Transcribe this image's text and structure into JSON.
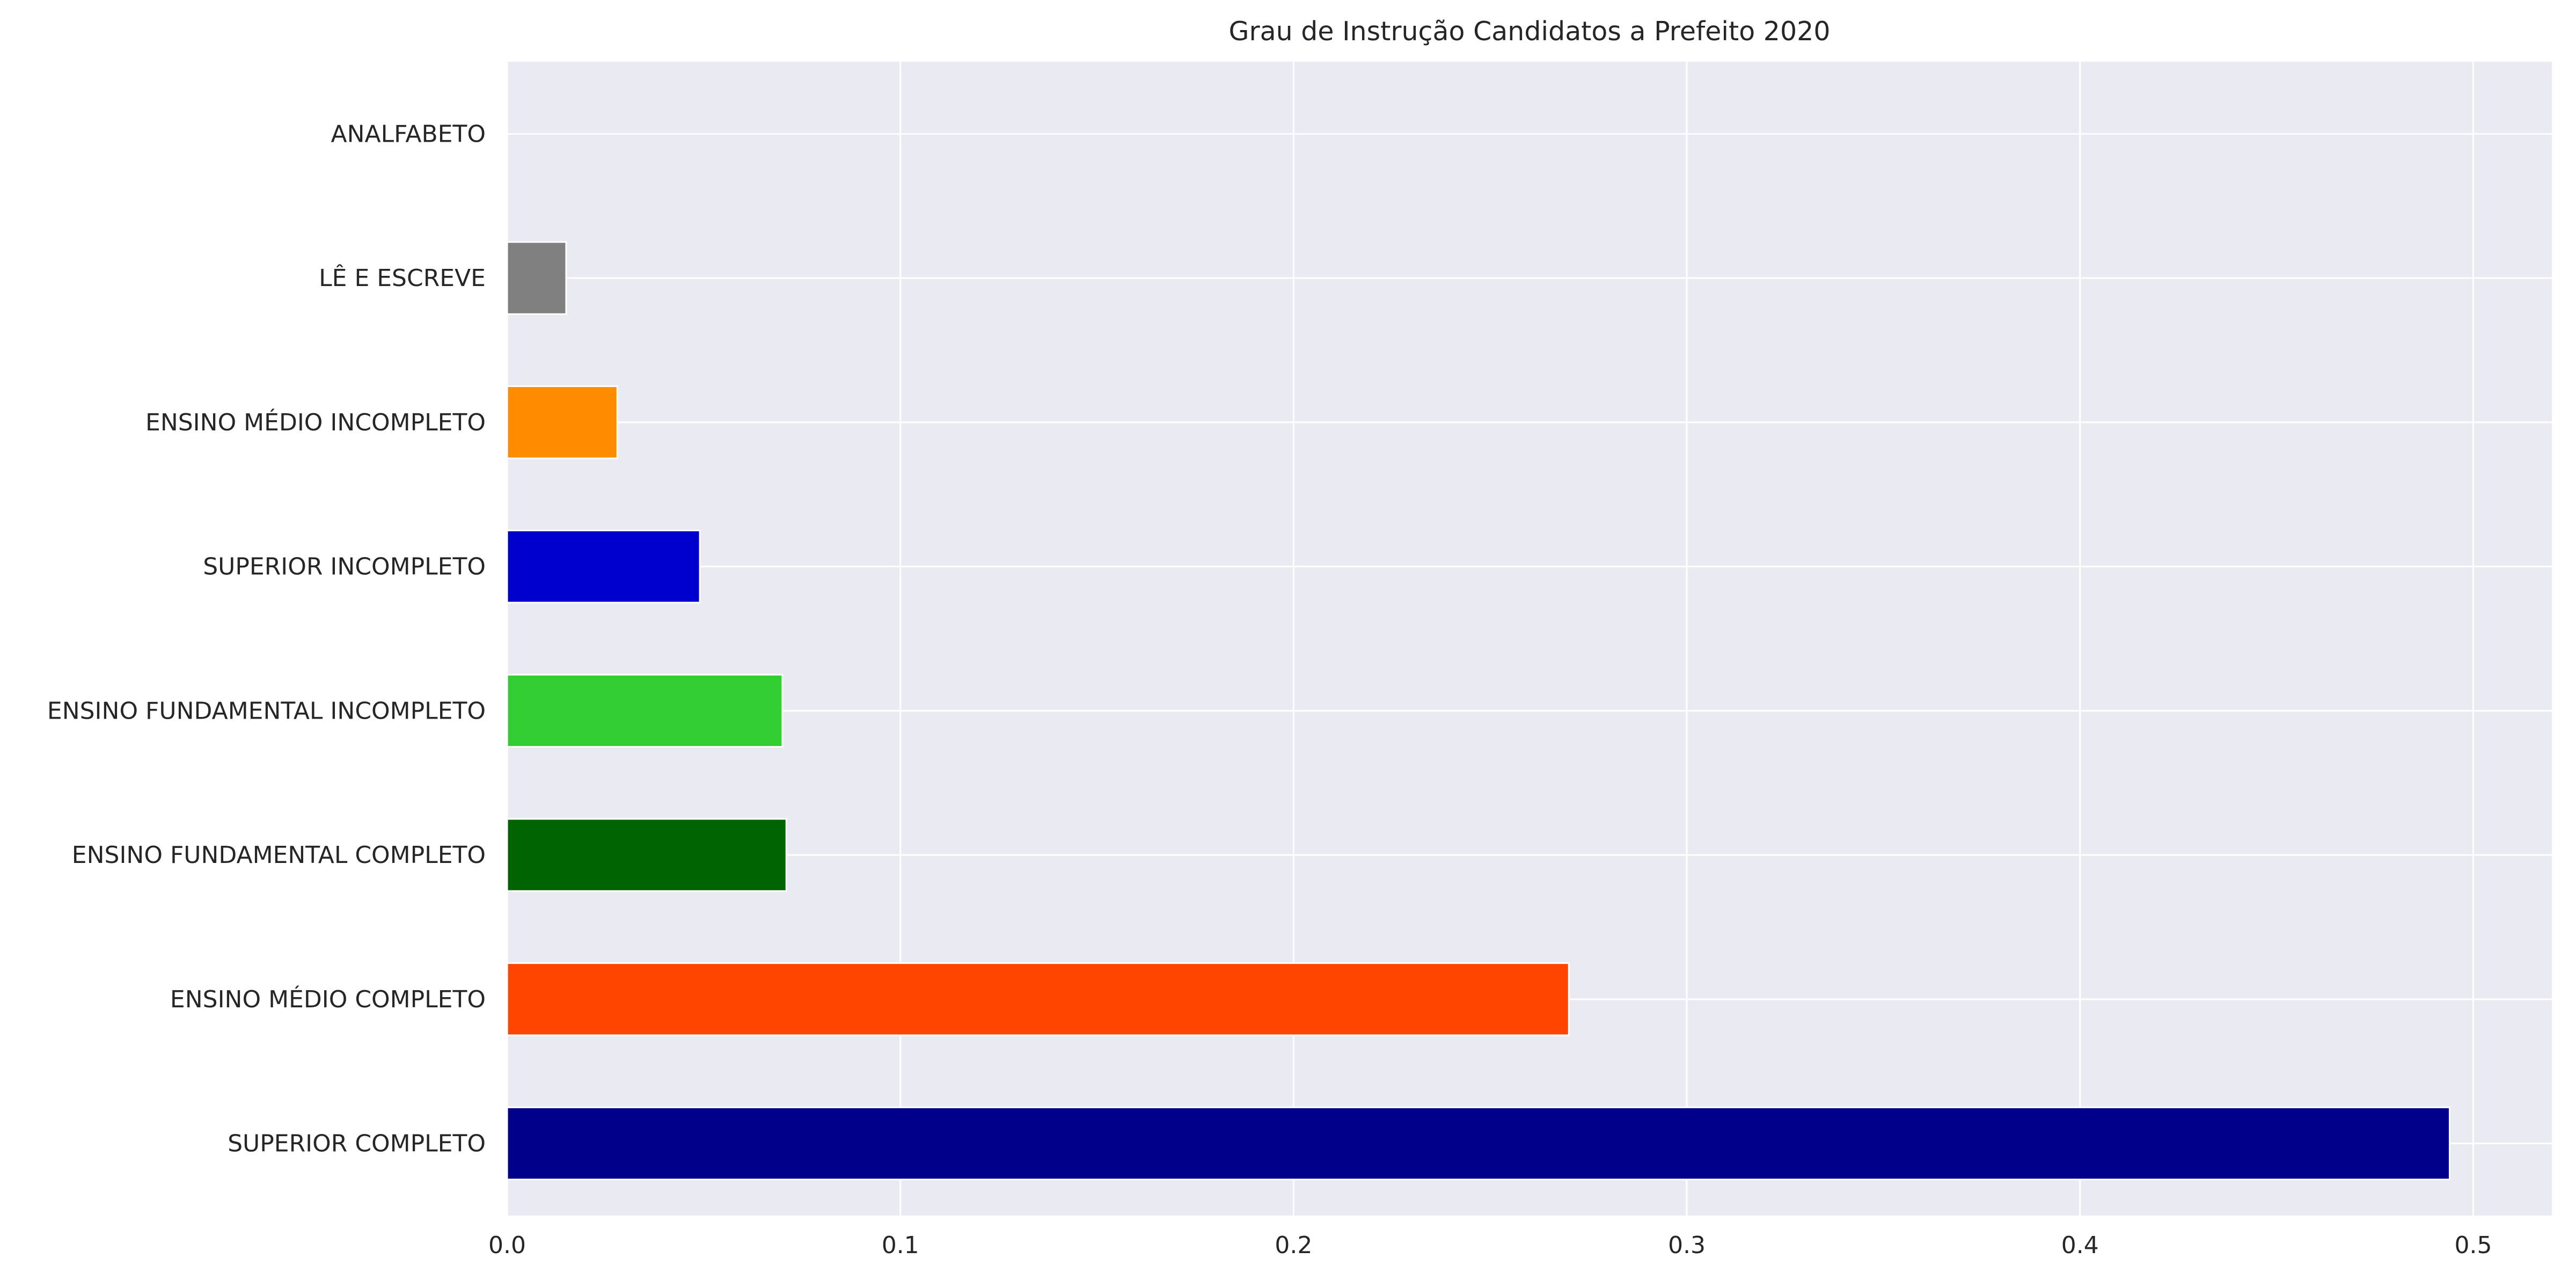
{
  "chart_data": {
    "type": "bar",
    "orientation": "horizontal",
    "title": "Grau de Instrução Candidatos a Prefeito 2020",
    "xlabel": "",
    "ylabel": "",
    "categories": [
      "SUPERIOR COMPLETO",
      "ENSINO MÉDIO COMPLETO",
      "ENSINO FUNDAMENTAL COMPLETO",
      "ENSINO FUNDAMENTAL INCOMPLETO",
      "SUPERIOR INCOMPLETO",
      "ENSINO MÉDIO INCOMPLETO",
      "LÊ E ESCREVE",
      "ANALFABETO"
    ],
    "values": [
      0.494,
      0.27,
      0.071,
      0.07,
      0.049,
      0.028,
      0.015,
      0.0
    ],
    "colors": [
      "#00008b",
      "#ff4500",
      "#006400",
      "#32cd32",
      "#0000cd",
      "#ff8c00",
      "#808080",
      "#a9a9a9"
    ],
    "xlim": [
      0.0,
      0.52
    ],
    "xticks": [
      0.0,
      0.1,
      0.2,
      0.3,
      0.4,
      0.5
    ],
    "xtick_labels": [
      "0.0",
      "0.1",
      "0.2",
      "0.3",
      "0.4",
      "0.5"
    ],
    "grid": true,
    "style": {
      "plot_background": "#eaeaf2",
      "grid_color": "#ffffff",
      "text_color": "#262626"
    }
  }
}
